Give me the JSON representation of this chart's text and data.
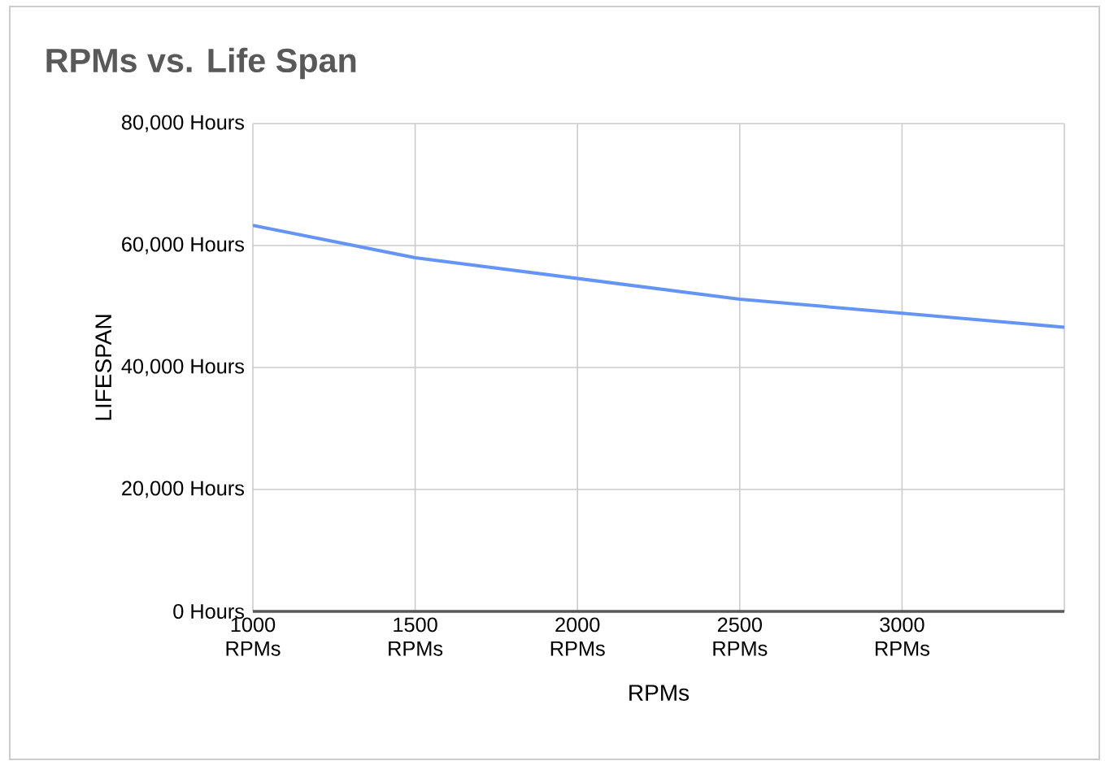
{
  "chart_data": {
    "type": "line",
    "title": "RPMs vs. Life Span",
    "xlabel": "RPMs",
    "ylabel": "LIFESPAN",
    "x": [
      1000,
      1500,
      2000,
      2500,
      3000,
      3500
    ],
    "series": [
      {
        "color": "#6495f5",
        "values": [
          63300,
          58000,
          54600,
          51200,
          48900,
          46600
        ]
      }
    ],
    "xlim": [
      1000,
      3500
    ],
    "xticks": [
      {
        "value": 1000,
        "label": "1000 RPMs"
      },
      {
        "value": 1500,
        "label": "1500 RPMs"
      },
      {
        "value": 2000,
        "label": "2000 RPMs"
      },
      {
        "value": 2500,
        "label": "2500 RPMs"
      },
      {
        "value": 3000,
        "label": "3000 RPMs"
      },
      {
        "value": 3500,
        "label": null
      }
    ],
    "ylim": [
      0,
      80000
    ],
    "yticks": [
      {
        "value": 0,
        "label": "0 Hours"
      },
      {
        "value": 20000,
        "label": "20,000 Hours"
      },
      {
        "value": 40000,
        "label": "40,000 Hours"
      },
      {
        "value": 60000,
        "label": "60,000 Hours"
      },
      {
        "value": 80000,
        "label": "80,000 Hours"
      }
    ],
    "grid": true,
    "legend": false,
    "marker": "none",
    "line_style": "solid"
  }
}
